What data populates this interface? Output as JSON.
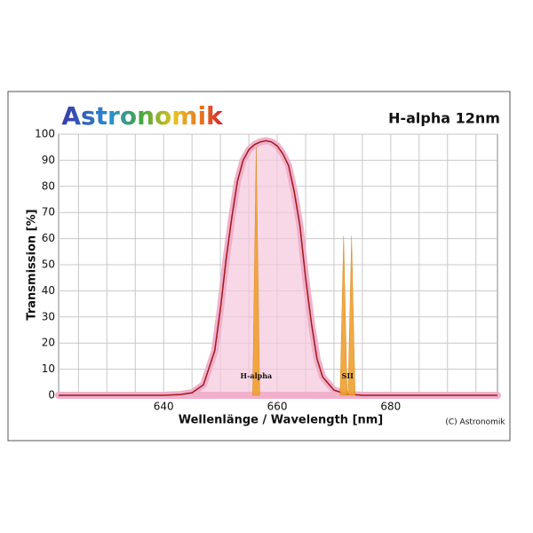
{
  "chart_data": {
    "type": "line",
    "logo": "Astronomik",
    "title": "H-alpha 12nm",
    "xlabel": "Wellenlänge / Wavelength [nm]",
    "ylabel": "Transmission [%]",
    "copyright": "(C) Astronomik",
    "x": [
      621.5,
      640,
      643,
      645,
      647,
      649,
      650,
      651,
      652,
      653,
      654,
      655,
      656,
      657,
      658,
      659,
      660,
      661,
      662,
      663,
      664,
      665,
      666,
      667,
      668,
      670,
      672,
      675,
      698.8
    ],
    "values": [
      0,
      0,
      0.3,
      1,
      4,
      17,
      33,
      52,
      68,
      82,
      90,
      94,
      96,
      97,
      97.5,
      97,
      95.5,
      92.5,
      88,
      78,
      65,
      45,
      28,
      14,
      7,
      2,
      0.5,
      0,
      0
    ],
    "color": "#a01818",
    "emission_lines": [
      {
        "name": "H-alpha",
        "x": [
          656.3
        ],
        "values": [
          95
        ]
      },
      {
        "name": "SII",
        "x": [
          671.7,
          673.1
        ],
        "values": [
          61,
          61
        ]
      }
    ],
    "emission_color": "#f0a030",
    "xlim": [
      621.5,
      698.8
    ],
    "ylim": [
      0,
      100
    ],
    "xticks": [
      640,
      660,
      680
    ],
    "xgrid": [
      625,
      630,
      635,
      640,
      645,
      650,
      655,
      660,
      665,
      670,
      675,
      680,
      685,
      690,
      695
    ],
    "yticks": [
      0,
      10,
      20,
      30,
      40,
      50,
      60,
      70,
      80,
      90,
      100
    ],
    "grid": true
  }
}
